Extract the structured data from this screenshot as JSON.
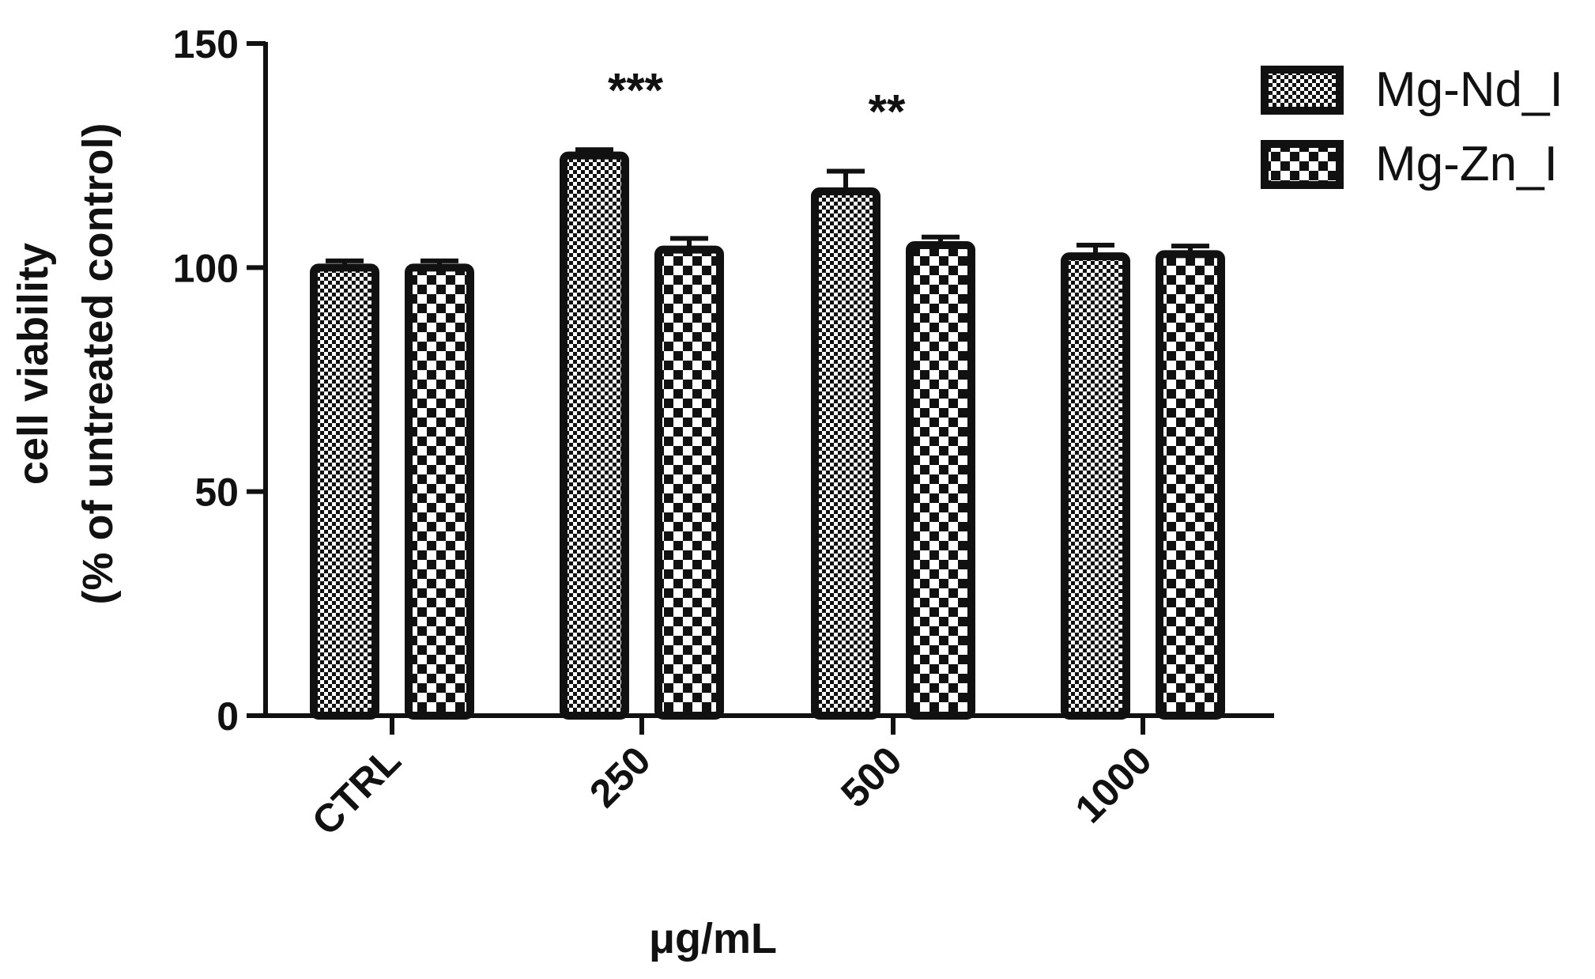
{
  "chart_data": {
    "type": "bar",
    "title": "",
    "xlabel": "μg/mL",
    "ylabel_lines": [
      "cell viability",
      "(% of untreated control)"
    ],
    "categories": [
      "CTRL",
      "250",
      "500",
      "1000"
    ],
    "ylim": [
      0,
      150
    ],
    "yticks": [
      "0",
      "50",
      "100",
      "150"
    ],
    "grid": false,
    "legend_position": "top-right",
    "series": [
      {
        "name": "Mg-Nd_I",
        "pattern": "fine-checker",
        "values": [
          100,
          125,
          117,
          102.5
        ],
        "errors": [
          1.5,
          1.3,
          4.5,
          2.5
        ]
      },
      {
        "name": "Mg-Zn_I",
        "pattern": "coarse-checker",
        "values": [
          100,
          104,
          105,
          103
        ],
        "errors": [
          1.5,
          2.5,
          1.8,
          1.8
        ]
      }
    ],
    "annotations": [
      {
        "category": "250",
        "text": "***"
      },
      {
        "category": "500",
        "text": "**"
      }
    ],
    "colors": {
      "bar_edge": "#111111",
      "fill_dark": "#111111",
      "fill_light": "#ffffff"
    }
  }
}
